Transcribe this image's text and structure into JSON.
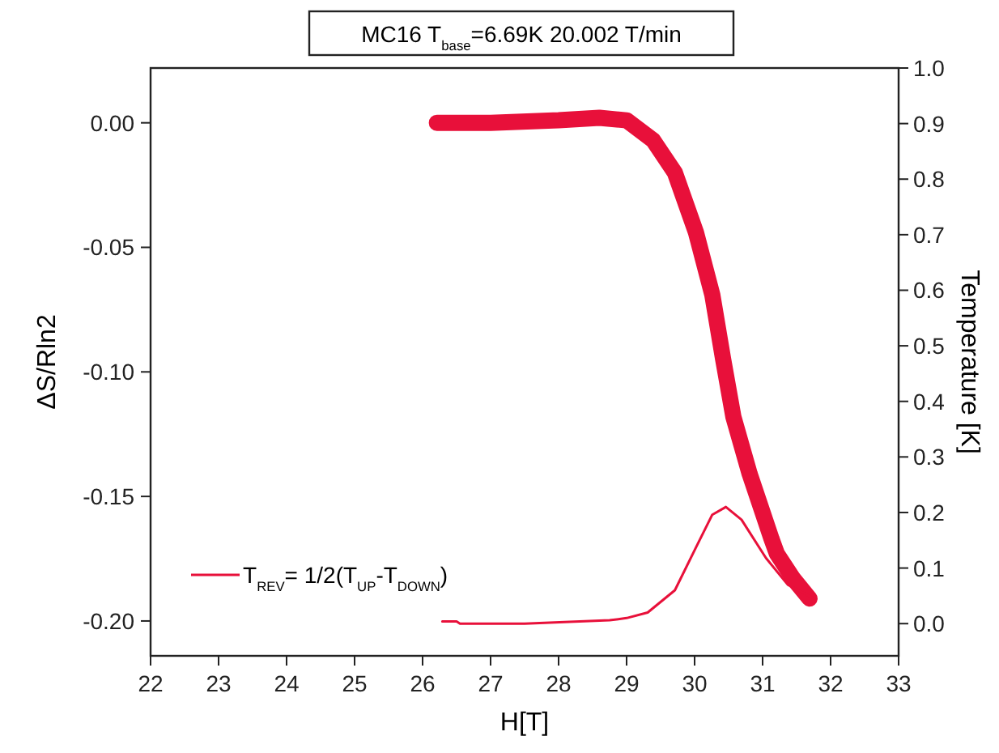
{
  "chart_data": {
    "type": "line",
    "title": "MC16 T$_{base}$=6.69K   20.002 T/min",
    "xlabel": "H[T]",
    "ylabel": "ΔS/Rln2",
    "y2label": "Temperature [K]",
    "series": [
      {
        "color": "#e8103a",
        "x": [
          26.21,
          27.0,
          28.0,
          28.6,
          29.0,
          29.39,
          29.71,
          30.02,
          30.26,
          30.42,
          30.57,
          30.81,
          31.13,
          31.21,
          31.45,
          31.69
        ],
        "values": [
          0.0,
          0.0,
          0.001,
          0.002,
          0.001,
          -0.007,
          -0.02,
          -0.044,
          -0.069,
          -0.095,
          -0.118,
          -0.141,
          -0.167,
          -0.173,
          -0.183,
          -0.191
        ]
      },
      {
        "name": "T$_{REV}$= 1/2(T$_{UP}$-T$_{DOWN}$)",
        "color": "#e8103a",
        "axis": "y2",
        "x": [
          26.29,
          26.5,
          26.55,
          27.5,
          28.75,
          29.0,
          29.31,
          29.71,
          30.02,
          30.26,
          30.46,
          30.69,
          31.05,
          31.37,
          31.76
        ],
        "values": [
          0.004,
          0.004,
          0.0,
          0.0,
          0.006,
          0.01,
          0.02,
          0.06,
          0.137,
          0.196,
          0.21,
          0.187,
          0.118,
          0.07,
          0.045
        ]
      }
    ],
    "xlim": [
      22,
      33
    ],
    "xticks": [
      22,
      23,
      24,
      25,
      26,
      27,
      28,
      29,
      30,
      31,
      32,
      33
    ],
    "ylim": [
      -0.214,
      0.022
    ],
    "yticks": [
      {
        "value": 0,
        "label": "0.00"
      },
      {
        "value": -0.05,
        "label": "-0.05"
      },
      {
        "value": -0.1,
        "label": "-0.10"
      },
      {
        "value": -0.15,
        "label": "-0.15"
      },
      {
        "value": -0.2,
        "label": "-0.20"
      }
    ],
    "y2lim": [
      -0.058,
      1.0
    ],
    "y2ticks": [
      {
        "value": 0,
        "label": "0.0"
      },
      {
        "value": 0.1,
        "label": "0.1"
      },
      {
        "value": 0.2,
        "label": "0.2"
      },
      {
        "value": 0.3,
        "label": "0.3"
      },
      {
        "value": 0.4,
        "label": "0.4"
      },
      {
        "value": 0.5,
        "label": "0.5"
      },
      {
        "value": 0.6,
        "label": "0.6"
      },
      {
        "value": 0.7,
        "label": "0.7"
      },
      {
        "value": 0.8,
        "label": "0.8"
      },
      {
        "value": 0.9,
        "label": "0.9"
      },
      {
        "value": 1,
        "label": "1.0"
      }
    ],
    "legend": "bottom left",
    "grid": false
  }
}
